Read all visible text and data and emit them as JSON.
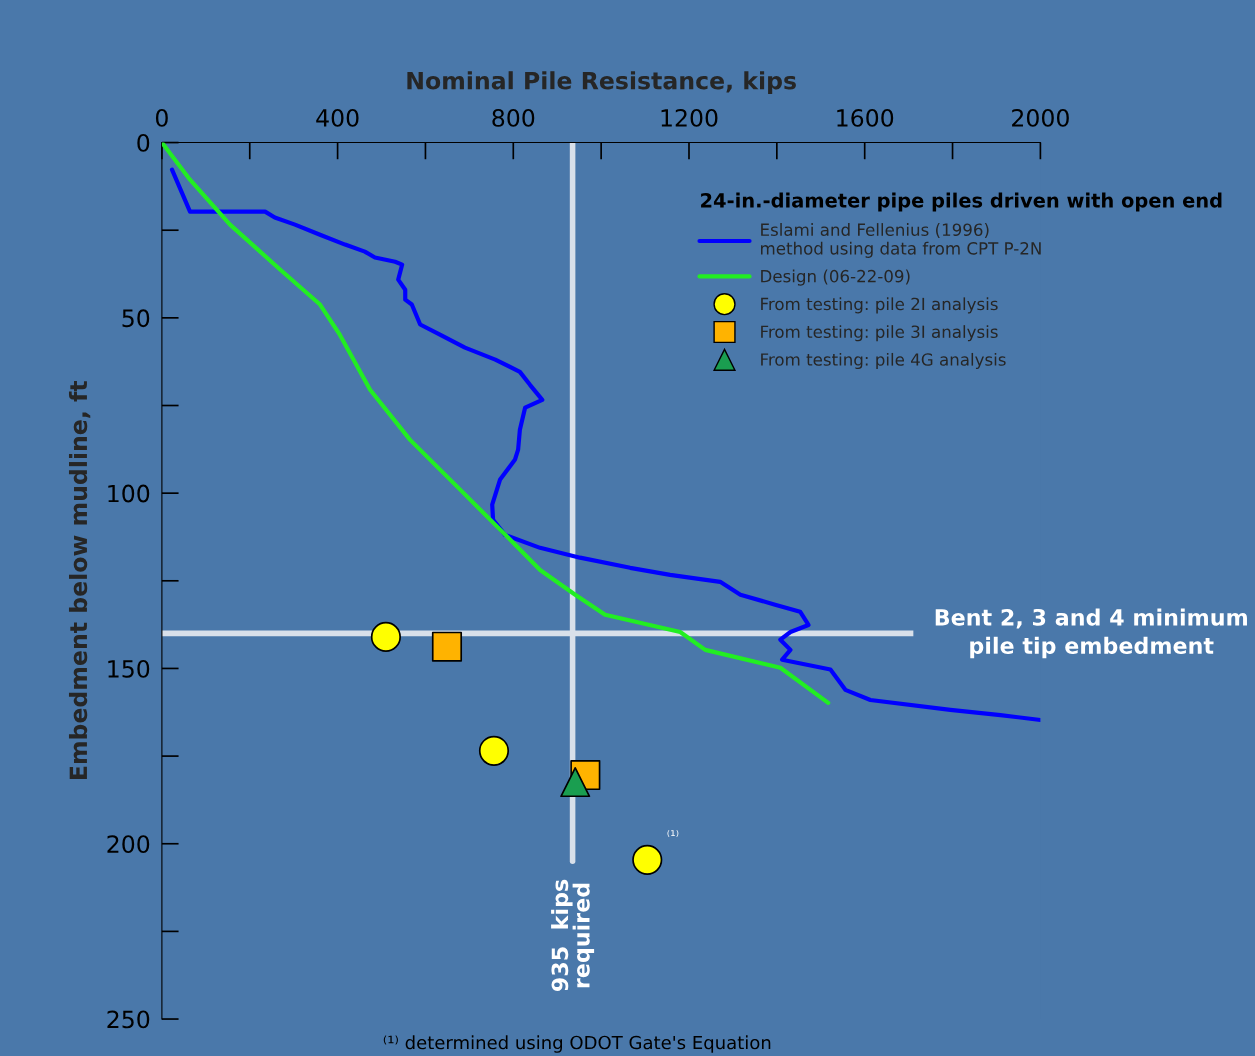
{
  "chart_data": {
    "type": "line",
    "xlabel": "Nominal Pile Resistance, kips",
    "ylabel": "Embedment below mudline, ft",
    "legend_title": "24-in.-diameter pipe piles driven with open end",
    "legend": "top right",
    "xlim": [
      0,
      2000
    ],
    "xticks": [
      0,
      400,
      800,
      1200,
      1600,
      2000
    ],
    "ylim": [
      250,
      0
    ],
    "yticks": [
      0,
      50,
      100,
      150,
      200,
      250
    ],
    "grid": false,
    "series": [
      {
        "name": "Eslami and Fellenius (1996)\nmethod using data from CPT P-2N",
        "color": "#0000ff",
        "marker": "none",
        "x": [
          23,
          64,
          235,
          257,
          303,
          360,
          417,
          462,
          485,
          531,
          547,
          538,
          554,
          554,
          569,
          588,
          633,
          690,
          759,
          815,
          838,
          866,
          827,
          815,
          811,
          804,
          770,
          752,
          754,
          781,
          861,
          952,
          1066,
          1157,
          1271,
          1317,
          1396,
          1453,
          1472,
          1431,
          1408,
          1431,
          1412,
          1522,
          1556,
          1613,
          1795,
          1909,
          2000
        ],
        "values": [
          7.7,
          19.7,
          19.7,
          21.4,
          23.4,
          26.3,
          29.1,
          31.1,
          32.8,
          34,
          34.8,
          39.1,
          42,
          44.8,
          46.2,
          51.9,
          54.8,
          58.5,
          61.9,
          65.4,
          69.1,
          73.4,
          75.6,
          81.9,
          87.6,
          90.4,
          96.1,
          103.3,
          107.6,
          111.9,
          115.6,
          118.4,
          121.3,
          123.3,
          125.3,
          129,
          131.8,
          133.8,
          137.6,
          139.6,
          141.8,
          144.7,
          147.5,
          150.3,
          156.1,
          159,
          161.8,
          163.3,
          164.7
        ]
      },
      {
        "name": "Design (06-22-09)",
        "color": "#22ee22",
        "marker": "none",
        "x": [
          0,
          64,
          155,
          269,
          360,
          405,
          474,
          565,
          679,
          770,
          861,
          941,
          1009,
          1180,
          1237,
          1408,
          1517
        ],
        "values": [
          0,
          10.6,
          23.4,
          36.2,
          46.2,
          54.8,
          70.5,
          84.8,
          99,
          110.4,
          121.9,
          129,
          134.7,
          139.6,
          144.7,
          149.8,
          159.8
        ]
      },
      {
        "name": "From testing: pile 2I analysis",
        "type": "scatter",
        "color": "#ffff00",
        "marker": "circle",
        "x": [
          510,
          756,
          1105
        ],
        "values": [
          141,
          173.5,
          204.6
        ]
      },
      {
        "name": "From testing: pile 3I analysis",
        "type": "scatter",
        "color": "#ffb300",
        "marker": "square",
        "x": [
          649,
          964
        ],
        "values": [
          143.8,
          180.4
        ]
      },
      {
        "name": "From testing: pile 4G analysis",
        "type": "scatter",
        "color": "#1a9e50",
        "marker": "triangle",
        "x": [
          941
        ],
        "values": [
          182.4
        ]
      }
    ],
    "ref_lines": [
      {
        "axis": "y",
        "value": 140,
        "label": "Bent 2, 3 and 4 minimum\npile tip embedment",
        "color": "#d8e0ea"
      },
      {
        "axis": "x",
        "value": 935,
        "label": "935  kips\nrequired",
        "color": "#d8e0ea"
      }
    ],
    "annotations": [
      {
        "text": "⁽¹⁾",
        "x": 1105,
        "y": 204.6
      },
      "⁽¹⁾ determined using ODOT Gate's Equation"
    ]
  }
}
